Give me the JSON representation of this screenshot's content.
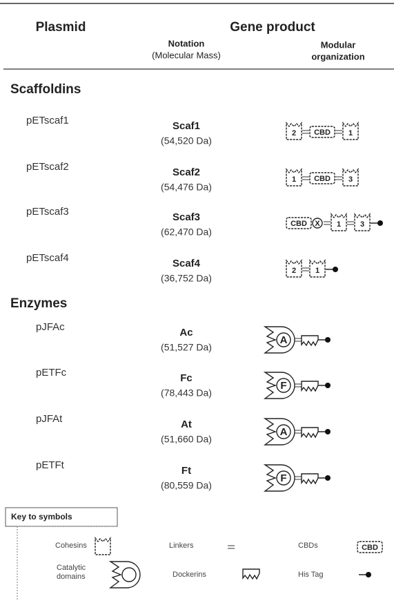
{
  "header": {
    "plasmid": "Plasmid",
    "gene_product": "Gene product",
    "notation": "Notation",
    "molecular_mass": "(Molecular Mass)",
    "modular": "Modular",
    "organization": "organization"
  },
  "sections": [
    {
      "title": "Scaffoldins",
      "rows": [
        {
          "plasmid": "pETscaf1",
          "product": "Scaf1",
          "mass": "(54,520 Da)",
          "modules": [
            "2",
            "CBD",
            "1"
          ]
        },
        {
          "plasmid": "pETscaf2",
          "product": "Scaf2",
          "mass": "(54,476 Da)",
          "modules": [
            "1",
            "CBD",
            "3"
          ]
        },
        {
          "plasmid": "pETscaf3",
          "product": "Scaf3",
          "mass": "(62,470 Da)",
          "modules": [
            "CBD",
            "X",
            "1",
            "3"
          ]
        },
        {
          "plasmid": "pETscaf4",
          "product": "Scaf4",
          "mass": "(36,752 Da)",
          "modules": [
            "2",
            "1"
          ]
        }
      ]
    },
    {
      "title": "Enzymes",
      "rows": [
        {
          "plasmid": "pJFAc",
          "product": "Ac",
          "mass": "(51,527 Da)",
          "modules": [
            "A"
          ]
        },
        {
          "plasmid": "pETFc",
          "product": "Fc",
          "mass": "(78,443 Da)",
          "modules": [
            "F"
          ]
        },
        {
          "plasmid": "pJFAt",
          "product": "At",
          "mass": "(51,660 Da)",
          "modules": [
            "A"
          ]
        },
        {
          "plasmid": "pETFt",
          "product": "Ft",
          "mass": "(80,559 Da)",
          "modules": [
            "F"
          ]
        }
      ]
    }
  ],
  "key": {
    "title": "Key to symbols",
    "cohesins": "Cohesins",
    "linkers": "Linkers",
    "cbds": "CBDs",
    "cbd_symbol": "CBD",
    "catalytic": "Catalytic",
    "domains": "domains",
    "dockerins": "Dockerins",
    "his_tag": "His Tag"
  }
}
